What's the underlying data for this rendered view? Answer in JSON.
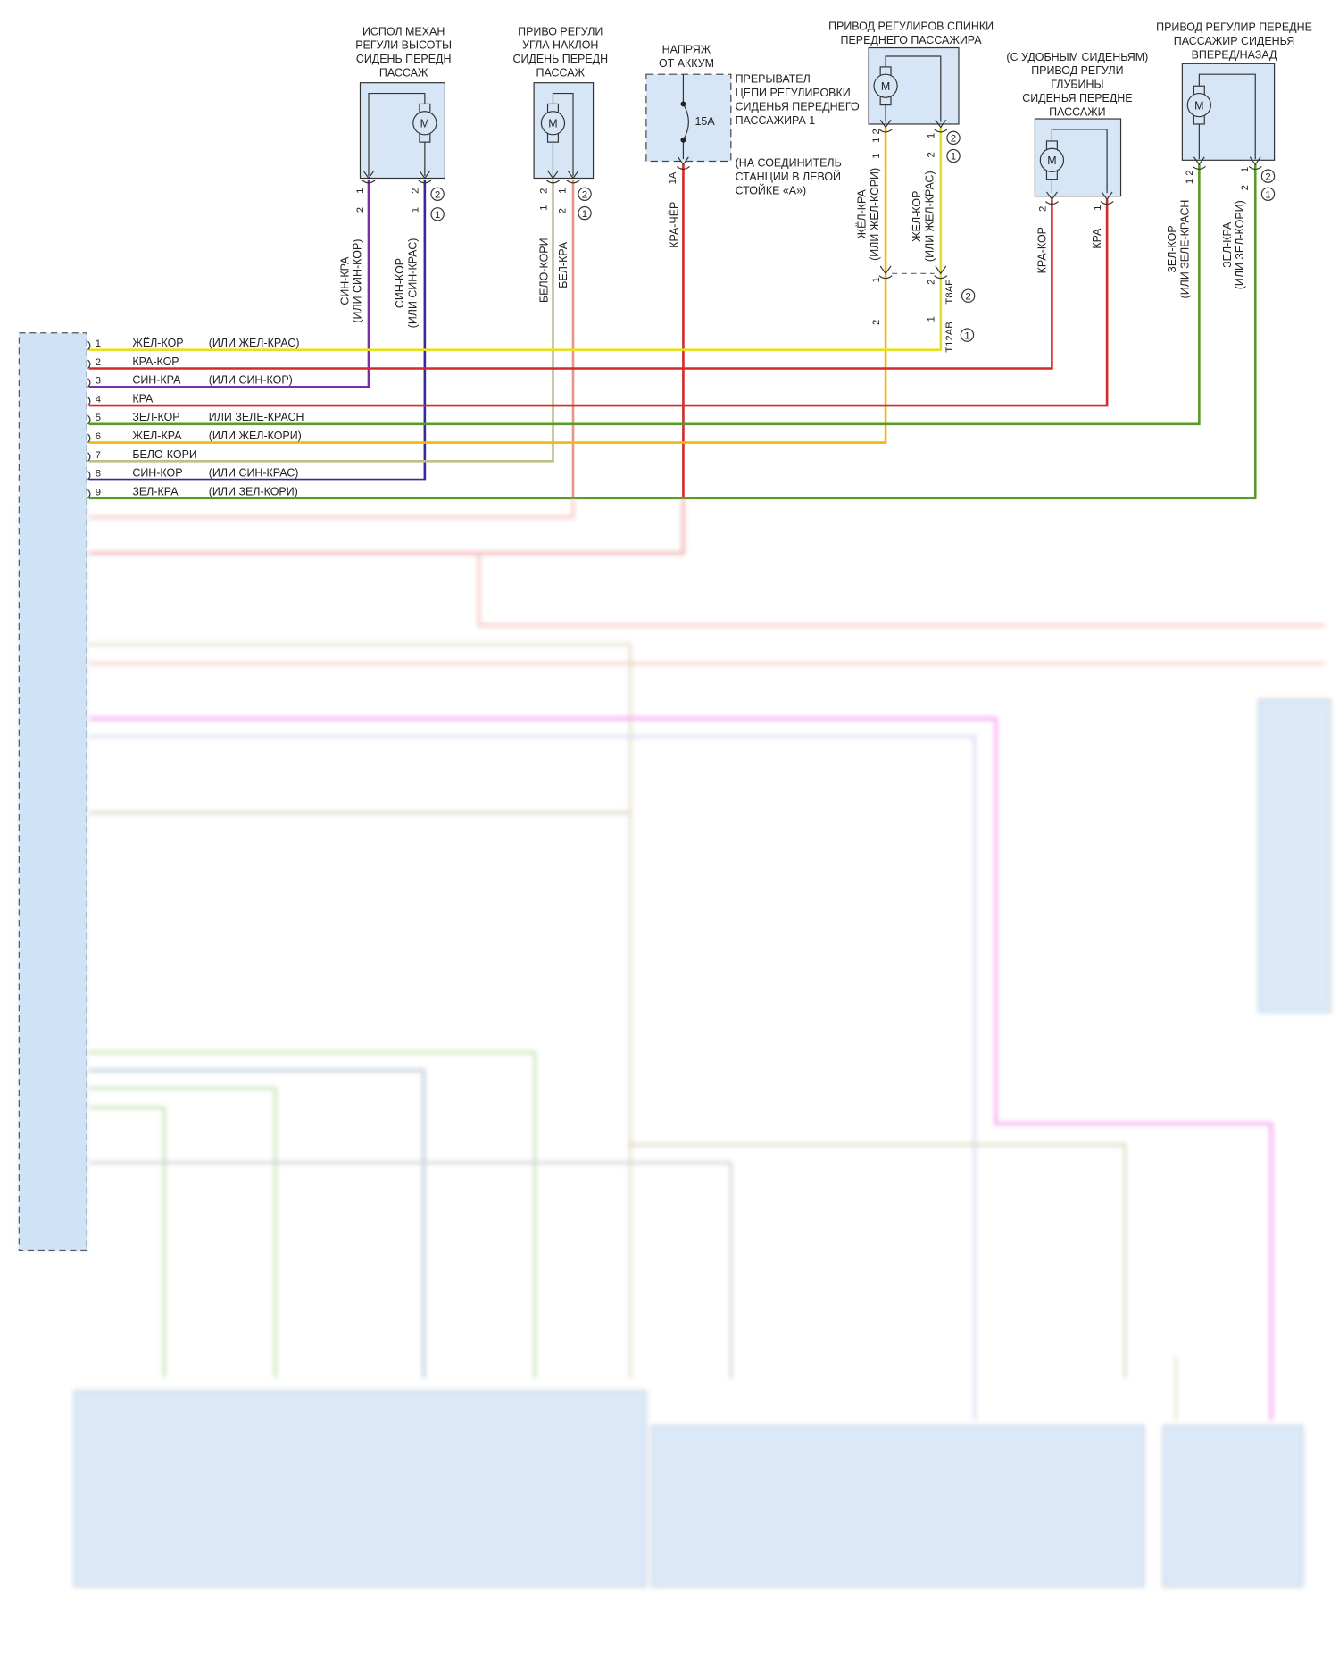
{
  "components": [
    {
      "id": "height",
      "title": [
        "ИСПОЛ МЕХАН",
        "РЕГУЛИ ВЫСОТЫ",
        "СИДЕНЬ ПЕРЕДН",
        "ПАССАЖ"
      ],
      "motor": "M",
      "wires": [
        {
          "color": "#7a2fa8",
          "name": [
            "СИН-КРА",
            "(ИЛИ СИН-КОР)"
          ],
          "pins": [
            "1",
            "2"
          ]
        },
        {
          "color": "#34299e",
          "name": [
            "СИН-КОР",
            "(ИЛИ СИН-КРАС)"
          ],
          "pins": [
            "2",
            "1"
          ]
        }
      ]
    },
    {
      "id": "tilt",
      "title": [
        "ПРИВО РЕГУЛИ",
        "УГЛА НАКЛОН",
        "СИДЕНЬ ПЕРЕДН",
        "ПАССАЖ"
      ],
      "motor": "M",
      "wires": [
        {
          "color": "#bfbf8c",
          "name": [
            "БЕЛО-КОРИ"
          ],
          "pins": [
            "2",
            "1"
          ]
        },
        {
          "color": "#e8958a",
          "name": [
            "БЕЛ-КРА"
          ],
          "pins": [
            "1",
            "2"
          ]
        }
      ]
    },
    {
      "id": "battery",
      "title": [
        "НАПРЯЖ",
        "ОТ АККУМ"
      ],
      "fuse": "15А",
      "pin": "1А",
      "wires": [
        {
          "color": "#d42a2a",
          "name": [
            "КРА-ЧЁР"
          ]
        }
      ],
      "fuse_label": [
        "ПРЕРЫВАТЕЛ",
        "ЦЕПИ РЕГУЛИРОВКИ",
        "СИДЕНЬЯ ПЕРЕДНЕГО",
        "ПАССАЖИРА 1"
      ],
      "location_note": [
        "(НА СОЕДИНИТЕЛЬ",
        "СТАНЦИИ В ЛЕВОЙ",
        "СТОЙКЕ «А»)"
      ]
    },
    {
      "id": "backrest",
      "title": [
        "ПРИВОД РЕГУЛИРОВ СПИНКИ",
        "ПЕРЕДНЕГО ПАССАЖИРА"
      ],
      "motor": "M",
      "wires": [
        {
          "color": "#f2b807",
          "name": [
            "ЖЁЛ-КРА",
            "(ИЛИ ЖЕЛ-КОРИ)"
          ],
          "pins": [
            "1 2"
          ],
          "lower_pins": [
            "1",
            "2"
          ]
        },
        {
          "color": "#e6e022",
          "name": [
            "ЖЁЛ-КОР",
            "(ИЛИ ЖЕЛ-КРАС)"
          ],
          "pins": [
            "1",
            "2"
          ],
          "lower_pins": [
            "2",
            "1"
          ]
        }
      ],
      "connectors": [
        "T8AE",
        "T12AB"
      ]
    },
    {
      "id": "depth",
      "title": [
        "(С УДОБНЫМ СИДЕНЬЯМ)",
        "ПРИВОД РЕГУЛИ",
        "ГЛУБИНЫ",
        "СИДЕНЬЯ ПЕРЕДНЕ",
        "ПАССАЖИ"
      ],
      "motor": "M",
      "wires": [
        {
          "color": "#d42a2a",
          "name": [
            "КРА-КОР"
          ],
          "pins": [
            "2"
          ]
        },
        {
          "color": "#d42a2a",
          "name": [
            "КРА"
          ],
          "pins": [
            "1"
          ]
        }
      ]
    },
    {
      "id": "fore_aft",
      "title": [
        "ПРИВОД РЕГУЛИР ПЕРЕДНЕ",
        "ПАССАЖИР СИДЕНЬЯ",
        "ВПЕРЕД/НАЗАД"
      ],
      "motor": "M",
      "wires": [
        {
          "color": "#5a9a2a",
          "name": [
            "ЗЕЛ-КОР",
            "(ИЛИ ЗЕЛЕ-КРАСН"
          ],
          "pins": [
            "1 2"
          ]
        },
        {
          "color": "#5a9a2a",
          "name": [
            "ЗЕЛ-КРА",
            "(ИЛИ ЗЕЛ-КОРИ)"
          ],
          "pins": [
            "2",
            "1"
          ]
        }
      ]
    }
  ],
  "connector_markers": [
    "2",
    "1"
  ],
  "connector_rows": [
    {
      "n": "1",
      "name": "ЖЁЛ-КОР",
      "alt": "(ИЛИ ЖЕЛ-КРАС)",
      "color": "#e6e022"
    },
    {
      "n": "2",
      "name": "КРА-КОР",
      "alt": "",
      "color": "#d42a2a"
    },
    {
      "n": "3",
      "name": "СИН-КРА",
      "alt": "(ИЛИ СИН-КОР)",
      "color": "#7a2fa8"
    },
    {
      "n": "4",
      "name": "КРА",
      "alt": "",
      "color": "#d42a2a"
    },
    {
      "n": "5",
      "name": "ЗЕЛ-КОР",
      "alt": "ИЛИ ЗЕЛЕ-КРАСН",
      "color": "#5a9a2a"
    },
    {
      "n": "6",
      "name": "ЖЁЛ-КРА",
      "alt": "(ИЛИ ЖЕЛ-КОРИ)",
      "color": "#f2b807"
    },
    {
      "n": "7",
      "name": "БЕЛО-КОРИ",
      "alt": "",
      "color": "#bfbf8c"
    },
    {
      "n": "8",
      "name": "СИН-КОР",
      "alt": "(ИЛИ СИН-КРАС)",
      "color": "#34299e"
    },
    {
      "n": "9",
      "name": "ЗЕЛ-КРА",
      "alt": "(ИЛИ ЗЕЛ-КОРИ)",
      "color": "#5a9a2a"
    }
  ]
}
